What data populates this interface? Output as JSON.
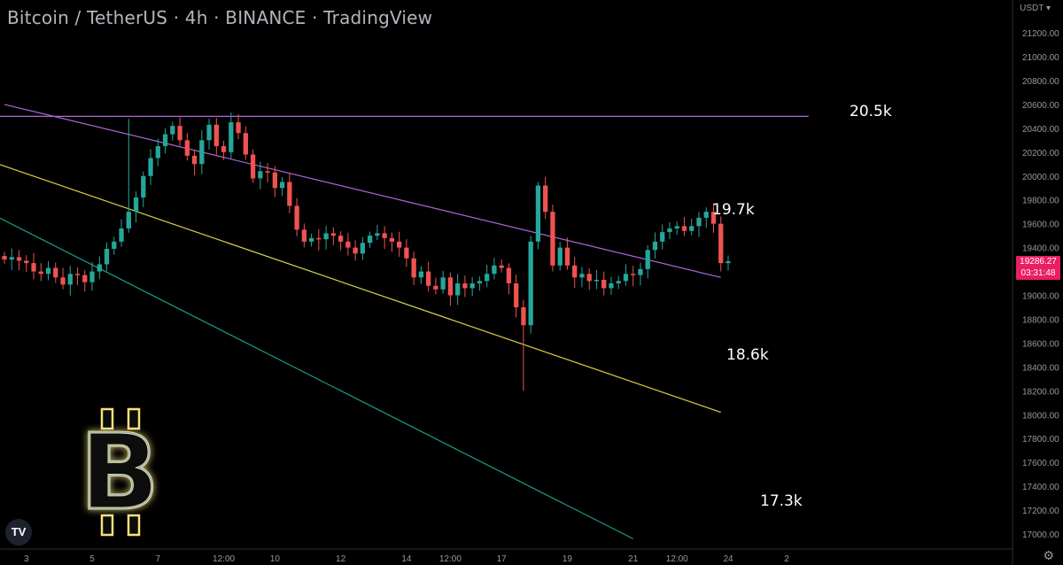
{
  "header": {
    "title": "Bitcoin / TetherUS · 4h · BINANCE · TradingView"
  },
  "axis": {
    "currency": "USDT"
  },
  "last_price": {
    "value": "19286.27",
    "countdown": "03:31:48",
    "color": "#e91e63"
  },
  "icons": {
    "settings": "gear-icon",
    "brand": "tradingview-logo",
    "bitcoin": "bitcoin-logo"
  },
  "colors": {
    "up": "#26a69a",
    "down": "#ef5350",
    "purple": "#b066d6",
    "yellow": "#d9d04a",
    "green": "#1c9c8c"
  },
  "chart_data": {
    "type": "candlestick",
    "title": "Bitcoin / TetherUS · 4h · BINANCE · TradingView",
    "ylim": [
      16900,
      21300
    ],
    "y_ticks": [
      17000,
      17200,
      17400,
      17600,
      17800,
      18000,
      18200,
      18400,
      18600,
      18800,
      19000,
      19200,
      19400,
      19600,
      19800,
      20000,
      20200,
      20400,
      20600,
      20800,
      21000,
      21200
    ],
    "y_tick_labels": [
      "17000.00",
      "17200.00",
      "17400.00",
      "17600.00",
      "17800.00",
      "18000.00",
      "18200.00",
      "18400.00",
      "18600.00",
      "18800.00",
      "19000.00",
      "19200.00",
      "19400.00",
      "19600.00",
      "19800.00",
      "20000.00",
      "20200.00",
      "20400.00",
      "20600.00",
      "20800.00",
      "21000.00",
      "21200.00"
    ],
    "x_range": [
      0,
      98
    ],
    "x_ticks": [
      {
        "label": "3",
        "bar": 3
      },
      {
        "label": "5",
        "bar": 12
      },
      {
        "label": "7",
        "bar": 21
      },
      {
        "label": "12:00",
        "bar": 30
      },
      {
        "label": "10",
        "bar": 37
      },
      {
        "label": "12",
        "bar": 46
      },
      {
        "label": "14",
        "bar": 55
      },
      {
        "label": "12:00",
        "bar": 61
      },
      {
        "label": "17",
        "bar": 68
      },
      {
        "label": "19",
        "bar": 77
      },
      {
        "label": "21",
        "bar": 86
      },
      {
        "label": "12:00",
        "bar": 92
      },
      {
        "label": "24",
        "bar": 99
      },
      {
        "label": "2",
        "bar": 107
      }
    ],
    "closes": [
      19300,
      19320,
      19290,
      19270,
      19200,
      19180,
      19230,
      19150,
      19090,
      19180,
      19170,
      19110,
      19200,
      19260,
      19390,
      19450,
      19560,
      19700,
      19820,
      20000,
      20150,
      20250,
      20350,
      20420,
      20300,
      20170,
      20100,
      20300,
      20430,
      20250,
      20200,
      20450,
      20360,
      20180,
      19980,
      20040,
      20030,
      19900,
      19950,
      19750,
      19550,
      19450,
      19480,
      19470,
      19520,
      19500,
      19450,
      19400,
      19350,
      19440,
      19500,
      19520,
      19480,
      19450,
      19400,
      19310,
      19150,
      19200,
      19080,
      19050,
      19150,
      19000,
      19100,
      19060,
      19100,
      19120,
      19180,
      19250,
      19230,
      19100,
      18900,
      18750,
      19450,
      19920,
      19700,
      19250,
      19400,
      19250,
      19150,
      19180,
      19120,
      19130,
      19060,
      19100,
      19120,
      19180,
      19170,
      19220,
      19380,
      19450,
      19530,
      19560,
      19580,
      19540,
      19580,
      19650,
      19700,
      19600,
      19270,
      19286
    ],
    "annotations": [
      {
        "text": "20.5k",
        "price": 20500
      },
      {
        "text": "19.7k",
        "price": 19700
      },
      {
        "text": "18.6k",
        "price": 18600
      },
      {
        "text": "17.3k",
        "price": 17300
      }
    ],
    "lines": [
      {
        "name": "horizontal-resistance",
        "color": "#b066d6",
        "bar1": -12,
        "price1": 20500,
        "bar2": 110,
        "price2": 20500
      },
      {
        "name": "upper-trendline",
        "color": "#b066d6",
        "bar1": 0,
        "price1": 20600,
        "bar2": 98,
        "price2": 19150
      },
      {
        "name": "middle-trendline",
        "color": "#d9d04a",
        "bar1": -7,
        "price1": 20230,
        "bar2": 98,
        "price2": 18020
      },
      {
        "name": "lower-trendline",
        "color": "#1c9c8c",
        "bar1": -12,
        "price1": 20000,
        "bar2": 86,
        "price2": 16960
      }
    ],
    "grid": false
  }
}
